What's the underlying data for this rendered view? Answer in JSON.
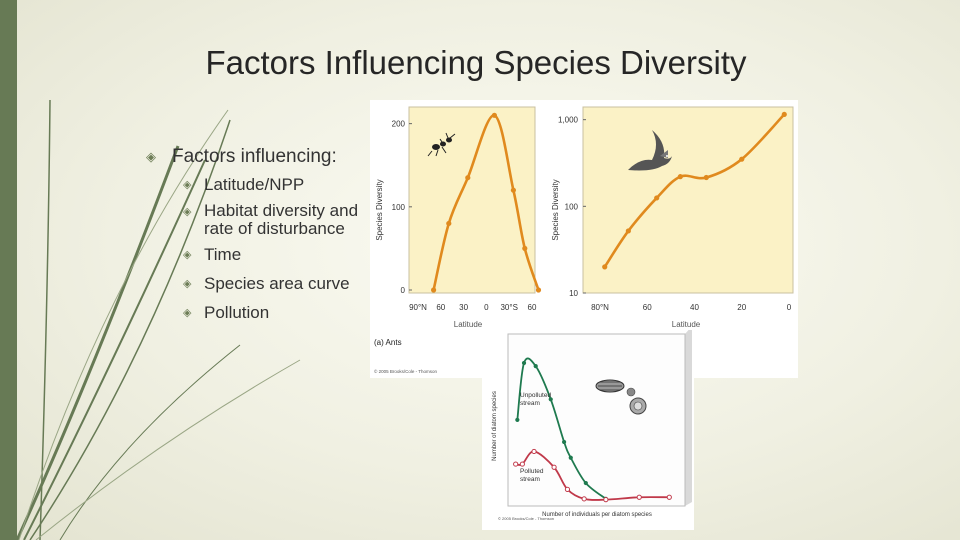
{
  "slide": {
    "title": "Factors Influencing Species Diversity",
    "bullet_glyph_icon": "diamond-arrow-icon",
    "main_bullet": "Factors influencing:",
    "sub_bullets": [
      {
        "text": "Latitude/NPP"
      },
      {
        "text": "Habitat diversity and rate of disturbance"
      },
      {
        "text": "Time"
      },
      {
        "text": "Species area curve"
      },
      {
        "text": "Pollution"
      }
    ],
    "accent_color": "#677a55"
  },
  "figure_top": {
    "panel_color": "#fbf2c6",
    "curve_color": "#e08a1e",
    "caption": "(a) Ants",
    "credit": "© 2005 Brooks/Cole - Thomson",
    "ants": {
      "ylabel": "Species Diversity",
      "xlabel": "Latitude",
      "yticks": [
        "200",
        "100",
        "0"
      ],
      "xticks": [
        "90°N",
        "60",
        "30",
        "0",
        "30°S",
        "60"
      ],
      "icon": "ant-icon"
    },
    "birds": {
      "ylabel": "Species Diversity",
      "xlabel": "Latitude",
      "yticks": [
        "1,000",
        "100",
        "10"
      ],
      "xticks": [
        "80°N",
        "60",
        "40",
        "20",
        "0"
      ],
      "icon": "bird-icon"
    }
  },
  "figure_bottom": {
    "ylabel": "Number of diatom species",
    "xlabel": "Number of individuals per diatom species",
    "unpolluted_label": "Unpolluted stream",
    "polluted_label": "Polluted stream",
    "credit": "© 2005 Brooks/Cole - Thomson",
    "unpolluted_color": "#1f7a4f",
    "polluted_color": "#c0394a",
    "panel_color": "#fdfdfd",
    "icon": "diatom-icon"
  },
  "chart_data": [
    {
      "type": "line",
      "title": "",
      "xlabel": "Latitude",
      "ylabel": "Species Diversity",
      "x": [
        "90°N",
        "60",
        "30",
        "0",
        "30°S",
        "60"
      ],
      "xlim": [
        -90,
        60
      ],
      "ylim": [
        0,
        220
      ],
      "series": [
        {
          "points": [
            [
              -80,
              0
            ],
            [
              -60,
              80
            ],
            [
              -35,
              135
            ],
            [
              0,
              210
            ],
            [
              25,
              120
            ],
            [
              40,
              50
            ],
            [
              58,
              0
            ]
          ]
        }
      ],
      "grid": false
    },
    {
      "type": "line",
      "title": "",
      "xlabel": "Latitude",
      "ylabel": "Species Diversity",
      "x": [
        "80°N",
        "60",
        "40",
        "20",
        "0"
      ],
      "xlim": [
        80,
        0
      ],
      "ylim": [
        10,
        1400
      ],
      "yscale": "log",
      "series": [
        {
          "points": [
            [
              78,
              20
            ],
            [
              68,
              52
            ],
            [
              56,
              125
            ],
            [
              46,
              220
            ],
            [
              35,
              215
            ],
            [
              20,
              350
            ],
            [
              2,
              1150
            ]
          ]
        }
      ],
      "grid": false
    },
    {
      "type": "line",
      "title": "",
      "xlabel": "Number of individuals per diatom species",
      "ylabel": "Number of diatom species",
      "xlim": [
        0,
        10
      ],
      "ylim": [
        0,
        10
      ],
      "series": [
        {
          "name": "Unpolluted stream",
          "points": [
            [
              0.2,
              5.2
            ],
            [
              0.6,
              8.8
            ],
            [
              1.3,
              8.6
            ],
            [
              2.2,
              6.5
            ],
            [
              3.0,
              3.8
            ],
            [
              3.4,
              2.8
            ],
            [
              4.3,
              1.2
            ],
            [
              5.5,
              0.2
            ]
          ]
        },
        {
          "name": "Polluted stream",
          "points": [
            [
              0.1,
              2.4
            ],
            [
              0.5,
              2.4
            ],
            [
              1.2,
              3.2
            ],
            [
              2.4,
              2.2
            ],
            [
              3.2,
              0.8
            ],
            [
              4.2,
              0.2
            ],
            [
              5.5,
              0.15
            ],
            [
              7.5,
              0.3
            ],
            [
              9.3,
              0.3
            ]
          ]
        }
      ],
      "grid": false
    }
  ]
}
